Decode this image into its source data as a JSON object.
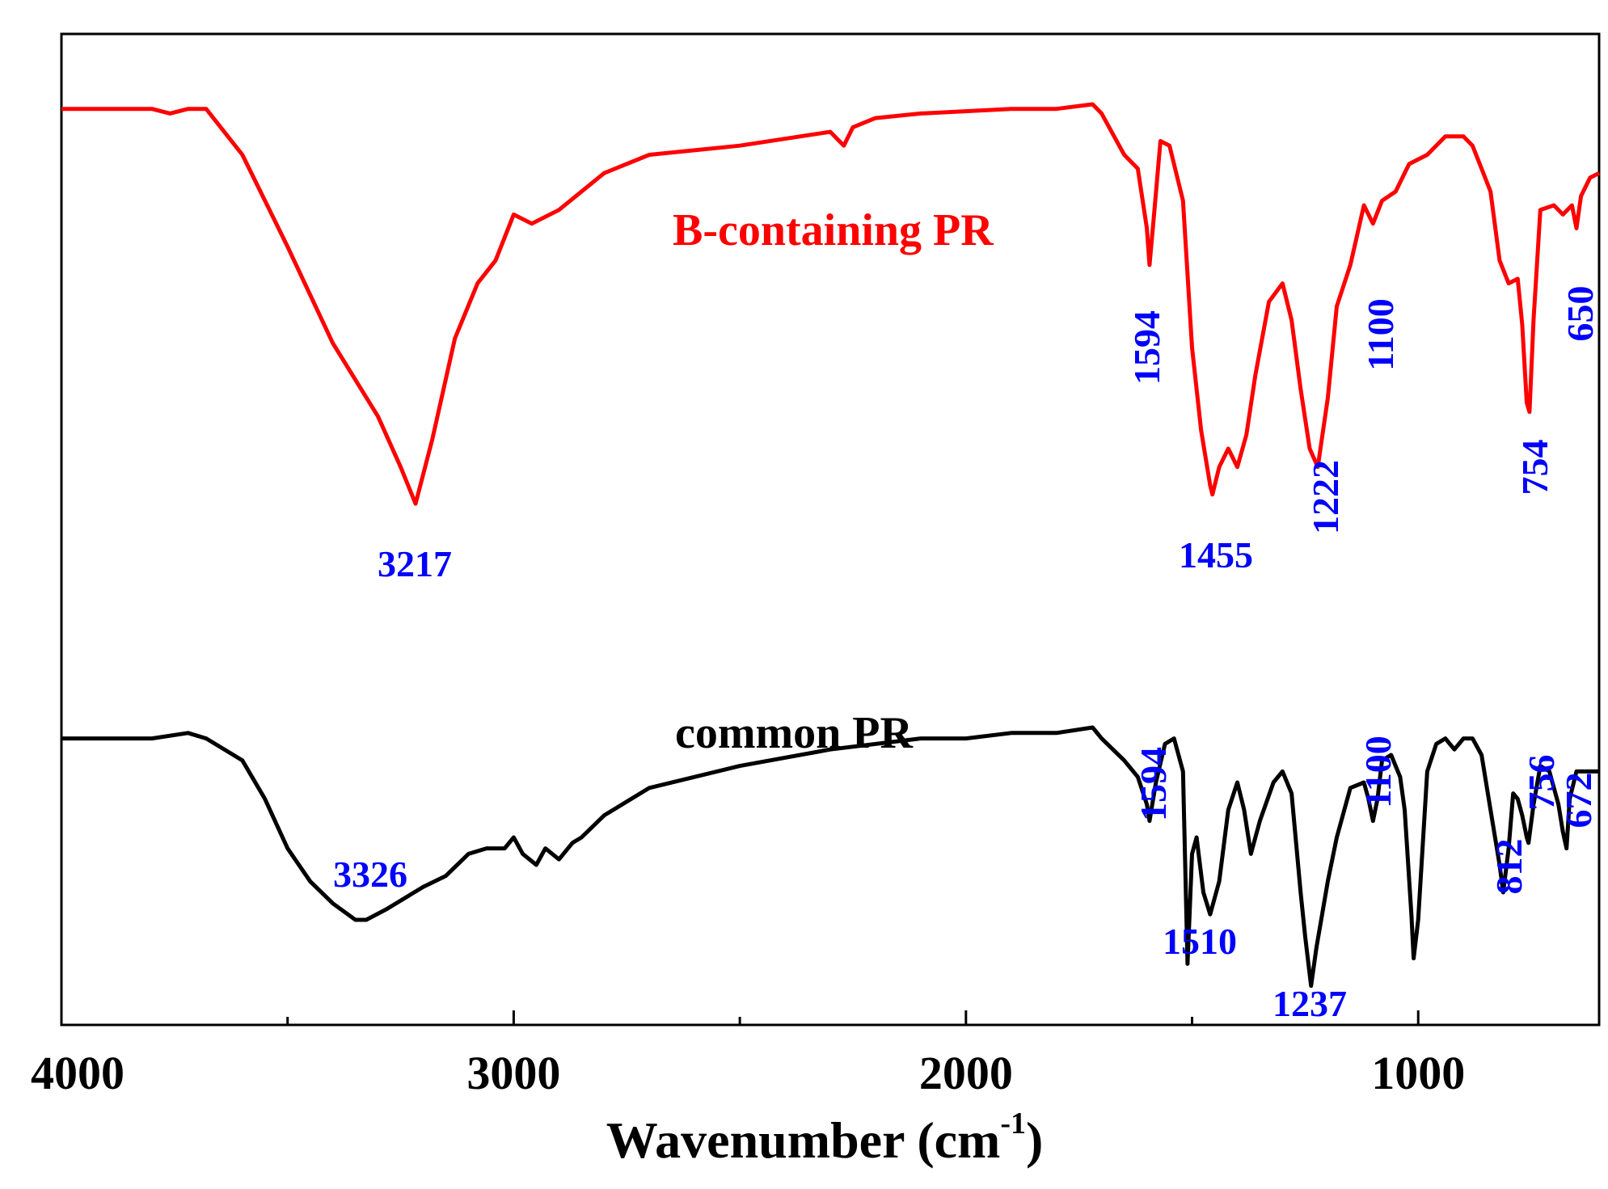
{
  "chart_data": {
    "type": "line",
    "title": "",
    "xlabel": "Wavenumber (cm",
    "xlabel_sup": "-1",
    "xlabel_close": ")",
    "ylabel": "",
    "xlim": [
      4000,
      600
    ],
    "x_reversed": true,
    "x_ticks": [
      4000,
      3000,
      2000,
      1000
    ],
    "x_tick_labels": [
      "4000",
      "3000",
      "2000",
      "1000"
    ],
    "x_minor_ticks": [
      3500,
      2500,
      1500
    ],
    "grid": false,
    "colors": {
      "b_containing": "#ff0000",
      "common": "#000000",
      "peak_labels": "#0000ff"
    },
    "series": [
      {
        "name": "B-containing PR",
        "color": "#ff0000",
        "x": [
          4000,
          3900,
          3800,
          3760,
          3720,
          3680,
          3600,
          3500,
          3400,
          3300,
          3250,
          3217,
          3180,
          3130,
          3080,
          3040,
          3000,
          2960,
          2900,
          2800,
          2700,
          2500,
          2300,
          2270,
          2250,
          2200,
          2100,
          1900,
          1800,
          1720,
          1700,
          1650,
          1620,
          1600,
          1594,
          1585,
          1570,
          1550,
          1520,
          1500,
          1480,
          1460,
          1455,
          1440,
          1420,
          1400,
          1380,
          1360,
          1330,
          1300,
          1280,
          1260,
          1240,
          1222,
          1200,
          1180,
          1150,
          1120,
          1100,
          1080,
          1050,
          1020,
          980,
          940,
          900,
          880,
          860,
          840,
          820,
          800,
          780,
          770,
          760,
          754,
          745,
          730,
          700,
          680,
          660,
          650,
          640,
          620,
          600
        ],
        "y": [
          96,
          96,
          96,
          95,
          96,
          96,
          86,
          66,
          45,
          29,
          18,
          10,
          24,
          46,
          58,
          63,
          73,
          71,
          74,
          82,
          86,
          88,
          91,
          88,
          92,
          94,
          95,
          96,
          96,
          97,
          95,
          86,
          83,
          70,
          62,
          72,
          89,
          88,
          76,
          44,
          26,
          14,
          12,
          18,
          22,
          18,
          25,
          38,
          54,
          58,
          50,
          35,
          22,
          18,
          33,
          53,
          62,
          75,
          71,
          76,
          78,
          84,
          86,
          90,
          90,
          88,
          83,
          78,
          63,
          58,
          59,
          49,
          32,
          30,
          50,
          74,
          75,
          73,
          75,
          70,
          77,
          81,
          82
        ]
      },
      {
        "name": "common PR",
        "color": "#000000",
        "x": [
          4000,
          3900,
          3800,
          3720,
          3680,
          3600,
          3550,
          3500,
          3450,
          3400,
          3350,
          3326,
          3280,
          3200,
          3150,
          3100,
          3060,
          3020,
          3000,
          2980,
          2950,
          2930,
          2900,
          2870,
          2850,
          2800,
          2700,
          2500,
          2300,
          2100,
          2000,
          1900,
          1800,
          1720,
          1700,
          1650,
          1620,
          1600,
          1594,
          1580,
          1560,
          1540,
          1520,
          1510,
          1500,
          1490,
          1475,
          1460,
          1440,
          1420,
          1400,
          1385,
          1370,
          1350,
          1320,
          1300,
          1280,
          1260,
          1250,
          1237,
          1225,
          1200,
          1180,
          1150,
          1120,
          1110,
          1100,
          1090,
          1080,
          1060,
          1040,
          1030,
          1015,
          1010,
          1000,
          980,
          960,
          940,
          920,
          900,
          880,
          860,
          840,
          820,
          812,
          800,
          790,
          780,
          770,
          760,
          756,
          745,
          730,
          710,
          690,
          680,
          672,
          665,
          650,
          630,
          600
        ],
        "y": [
          48,
          48,
          48,
          49,
          48,
          44,
          37,
          28,
          22,
          18,
          15,
          15,
          17,
          21,
          23,
          27,
          28,
          28,
          30,
          27,
          25,
          28,
          26,
          29,
          30,
          34,
          39,
          43,
          46,
          48,
          48,
          49,
          49,
          50,
          48,
          44,
          41,
          36,
          33,
          40,
          47,
          48,
          42,
          7,
          27,
          30,
          20,
          16,
          22,
          35,
          40,
          35,
          27,
          33,
          40,
          42,
          38,
          20,
          12,
          3,
          10,
          22,
          30,
          39,
          40,
          37,
          33,
          37,
          44,
          45,
          41,
          35,
          16,
          8,
          15,
          42,
          47,
          48,
          46,
          48,
          48,
          45,
          35,
          25,
          20,
          28,
          38,
          37,
          34,
          30,
          29,
          36,
          43,
          42,
          36,
          31,
          28,
          37,
          42,
          42,
          42
        ]
      }
    ],
    "series_labels": [
      "B-containing PR",
      "common PR"
    ],
    "annotations": {
      "b_containing": [
        "3217",
        "1594",
        "1455",
        "1222",
        "1100",
        "754",
        "650"
      ],
      "common": [
        "3326",
        "1594",
        "1510",
        "1237",
        "1100",
        "812",
        "756",
        "672"
      ]
    }
  }
}
